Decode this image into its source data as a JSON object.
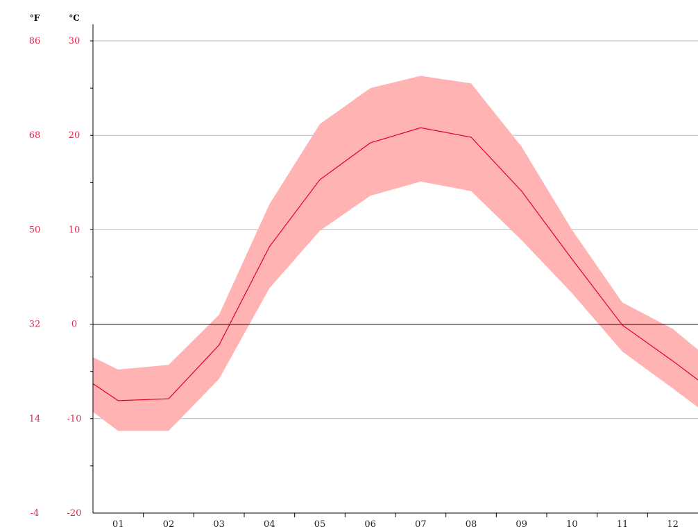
{
  "units": {
    "fahrenheit": "°F",
    "celsius": "°C"
  },
  "colors": {
    "axis_labels": "#e8234b",
    "line": "#e4001b",
    "band": "#ffb3b3",
    "grid": "#b9b9b9",
    "axis": "#000000"
  },
  "chart_data": {
    "type": "line",
    "title": "",
    "xlabel": "",
    "ylabel": "°C",
    "ylabel_secondary": "°F",
    "categories": [
      "01",
      "02",
      "03",
      "04",
      "05",
      "06",
      "07",
      "08",
      "09",
      "10",
      "11",
      "12"
    ],
    "ylim": [
      -20,
      30
    ],
    "yticks_celsius": [
      "30",
      "20",
      "10",
      "0",
      "-10",
      "-20"
    ],
    "yticks_fahrenheit": [
      "86",
      "68",
      "50",
      "32",
      "14",
      "-4"
    ],
    "grid": true,
    "x": [
      0.0,
      0.5,
      1.5,
      2.5,
      3.5,
      4.5,
      5.5,
      6.5,
      7.5,
      8.5,
      9.5,
      10.5,
      11.5,
      12.0
    ],
    "series": [
      {
        "type": "line",
        "values": [
          -6.3,
          -8.1,
          -7.9,
          -2.2,
          8.2,
          15.3,
          19.2,
          20.8,
          19.8,
          14.1,
          6.9,
          -0.1,
          -3.9,
          -5.9
        ]
      },
      {
        "type": "band_upper",
        "values": [
          -3.5,
          -4.8,
          -4.3,
          1.0,
          12.7,
          21.2,
          25.0,
          26.3,
          25.5,
          18.8,
          10.0,
          2.3,
          -0.5,
          -2.7
        ]
      },
      {
        "type": "band_lower",
        "values": [
          -9.3,
          -11.3,
          -11.3,
          -5.8,
          3.8,
          9.9,
          13.6,
          15.1,
          14.1,
          8.9,
          3.3,
          -2.9,
          -6.8,
          -8.8
        ]
      }
    ]
  }
}
